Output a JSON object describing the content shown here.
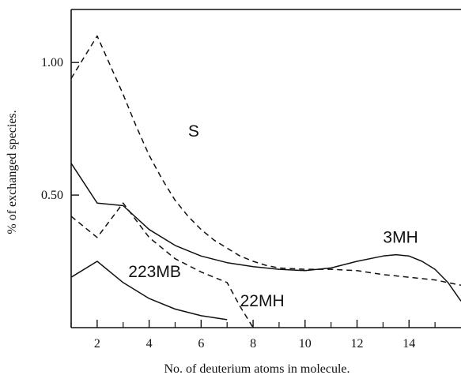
{
  "chart_data": {
    "type": "line",
    "title": "",
    "xlabel": "No. of deuterium atoms in molecule.",
    "ylabel": "% of exchanged species.",
    "xlim": [
      1,
      16
    ],
    "ylim": [
      0,
      1.2
    ],
    "grid": false,
    "x_ticks": [
      {
        "value": 2,
        "label": "2"
      },
      {
        "value": 4,
        "label": "4"
      },
      {
        "value": 6,
        "label": "6"
      },
      {
        "value": 8,
        "label": "8"
      },
      {
        "value": 10,
        "label": "10"
      },
      {
        "value": 12,
        "label": "12"
      },
      {
        "value": 14,
        "label": "14"
      }
    ],
    "x_minor_ticks": [
      1,
      3,
      5,
      7,
      9,
      11,
      13,
      15
    ],
    "y_ticks": [
      {
        "value": 0.5,
        "label": "0.50"
      },
      {
        "value": 1.0,
        "label": "1.00"
      }
    ],
    "series": [
      {
        "name": "S",
        "style": "dashed",
        "x": [
          1,
          2,
          2.5,
          3,
          3.5,
          4,
          4.5,
          5,
          5.5,
          6,
          6.5,
          7,
          7.5,
          8,
          8.5,
          9,
          10,
          11,
          12,
          13,
          14,
          15,
          16
        ],
        "y": [
          0.94,
          1.1,
          0.99,
          0.88,
          0.76,
          0.65,
          0.56,
          0.48,
          0.42,
          0.37,
          0.33,
          0.3,
          0.27,
          0.25,
          0.235,
          0.225,
          0.22,
          0.22,
          0.215,
          0.2,
          0.19,
          0.18,
          0.16
        ]
      },
      {
        "name": "3MH",
        "style": "solid",
        "x": [
          1,
          2,
          3,
          4,
          5,
          6,
          7,
          8,
          9,
          10,
          11,
          12,
          13,
          13.5,
          14,
          14.5,
          15,
          15.5,
          16
        ],
        "y": [
          0.62,
          0.47,
          0.46,
          0.37,
          0.31,
          0.27,
          0.245,
          0.23,
          0.22,
          0.215,
          0.225,
          0.25,
          0.27,
          0.275,
          0.27,
          0.25,
          0.22,
          0.17,
          0.1
        ]
      },
      {
        "name": "22MH",
        "style": "dashed",
        "x": [
          1,
          2,
          3,
          4,
          5,
          6,
          7,
          7.5,
          8
        ],
        "y": [
          0.42,
          0.34,
          0.47,
          0.34,
          0.26,
          0.21,
          0.17,
          0.08,
          0.0
        ]
      },
      {
        "name": "223MB",
        "style": "solid",
        "x": [
          1,
          2,
          3,
          4,
          5,
          6,
          7
        ],
        "y": [
          0.19,
          0.25,
          0.17,
          0.11,
          0.07,
          0.045,
          0.03
        ]
      }
    ],
    "series_labels": [
      {
        "text": "S",
        "x": 5.5,
        "y": 0.72
      },
      {
        "text": "3MH",
        "x": 13.0,
        "y": 0.32
      },
      {
        "text": "223MB",
        "x": 3.2,
        "y": 0.19
      },
      {
        "text": "22MH",
        "x": 7.5,
        "y": 0.08
      }
    ]
  }
}
